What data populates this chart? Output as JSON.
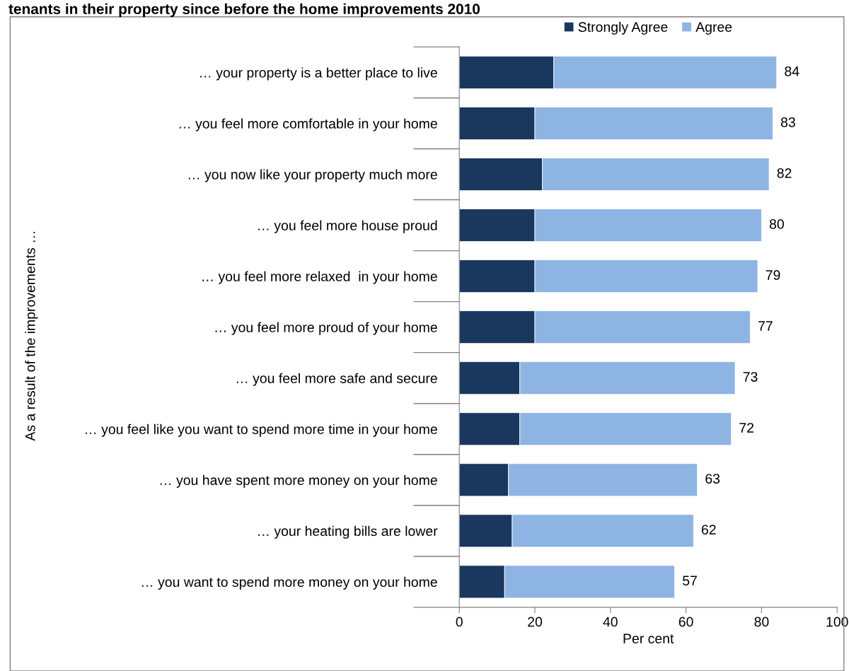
{
  "chart_data": {
    "type": "bar",
    "orientation": "horizontal",
    "stacked": true,
    "title": "tenants in their property since before the home improvements 2010",
    "ylabel": "As a result of the improvements …",
    "xlabel": "Per cent",
    "categories": [
      "… your property is a better place to live",
      "… you feel more comfortable in your home",
      "… you now like your property much more",
      "… you feel more house proud",
      "… you feel more relaxed  in your home",
      "… you feel more proud of your home",
      "… you feel more safe and secure",
      "… you feel like you want to spend more time in your home",
      "… you have spent more money on your home",
      "… your heating bills are lower",
      "… you want to spend more money on your home"
    ],
    "series": [
      {
        "name": "Strongly Agree",
        "color": "#1a375e",
        "values": [
          25,
          20,
          22,
          20,
          20,
          20,
          16,
          16,
          13,
          14,
          12
        ]
      },
      {
        "name": "Agree",
        "color": "#8eb4e3",
        "values": [
          59,
          63,
          60,
          60,
          59,
          57,
          57,
          56,
          50,
          48,
          45
        ]
      }
    ],
    "totals": [
      "84",
      "83",
      "82",
      "80",
      "79",
      "77",
      "73",
      "72",
      "63",
      "62",
      "57"
    ],
    "xlim": [
      0,
      100
    ],
    "xticks": [
      0,
      20,
      40,
      60,
      80,
      100
    ],
    "grid": false,
    "legend": "top"
  }
}
